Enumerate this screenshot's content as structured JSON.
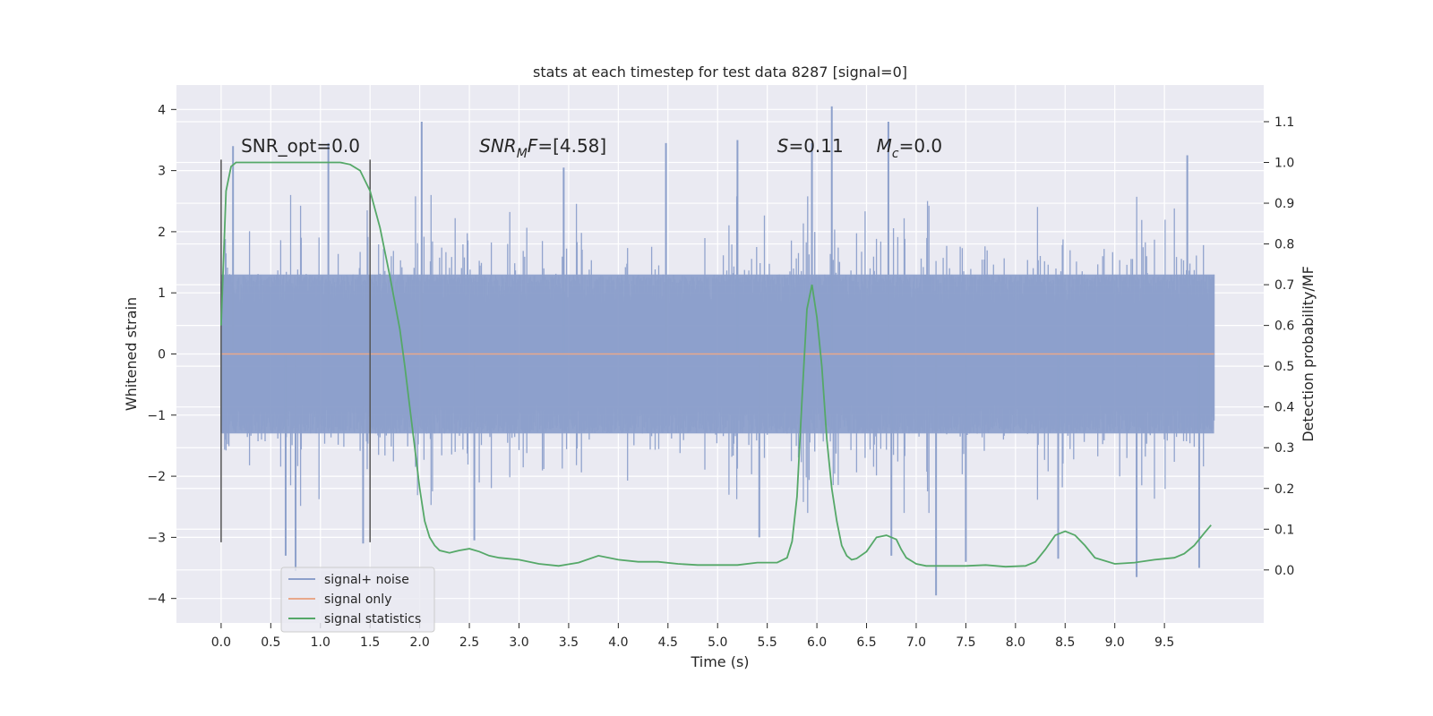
{
  "chart_data": {
    "type": "line",
    "title": "stats at each timestep for test data 8287 [signal=0]",
    "xlabel": "Time (s)",
    "ylabel": "Whitened strain",
    "y2label": "Detection probability/MF",
    "xlim": [
      -0.45,
      10.5
    ],
    "ylim": [
      -4.4,
      4.4
    ],
    "y2lim": [
      -0.13,
      1.19
    ],
    "grid": true,
    "legend_position": "lower-left",
    "x_ticks": [
      0.0,
      0.5,
      1.0,
      1.5,
      2.0,
      2.5,
      3.0,
      3.5,
      4.0,
      4.5,
      5.0,
      5.5,
      6.0,
      6.5,
      7.0,
      7.5,
      8.0,
      8.5,
      9.0,
      9.5
    ],
    "x_tick_labels": [
      "0.0",
      "0.5",
      "1.0",
      "1.5",
      "2.0",
      "2.5",
      "3.0",
      "3.5",
      "4.0",
      "4.5",
      "5.0",
      "5.5",
      "6.0",
      "6.5",
      "7.0",
      "7.5",
      "8.0",
      "8.5",
      "9.0",
      "9.5"
    ],
    "y_ticks": [
      -4,
      -3,
      -2,
      -1,
      0,
      1,
      2,
      3,
      4
    ],
    "y_tick_labels": [
      "−4",
      "−3",
      "−2",
      "−1",
      "0",
      "1",
      "2",
      "3",
      "4"
    ],
    "y2_ticks": [
      0.0,
      0.1,
      0.2,
      0.3,
      0.4,
      0.5,
      0.6,
      0.7,
      0.8,
      0.9,
      1.0,
      1.1
    ],
    "y2_tick_labels": [
      "0.0",
      "0.1",
      "0.2",
      "0.3",
      "0.4",
      "0.5",
      "0.6",
      "0.7",
      "0.8",
      "0.9",
      "1.0",
      "1.1"
    ],
    "vlines": [
      {
        "x": 0.0,
        "ymin": -3.08,
        "ymax": 3.18
      },
      {
        "x": 1.5,
        "ymin": -3.08,
        "ymax": 3.18
      }
    ],
    "annotations": [
      {
        "prefix": "SNR_opt=0.0",
        "italic": "",
        "sub": "",
        "suffix": "",
        "x": 0.2,
        "y": 3.3
      },
      {
        "prefix": "",
        "italic": "SNR",
        "sub": "M",
        "suffix": "F=[4.58]",
        "x": 2.6,
        "y": 3.3
      },
      {
        "prefix": "",
        "italic": "S",
        "sub": "",
        "suffix": "=0.11",
        "x": 5.6,
        "y": 3.3
      },
      {
        "prefix": "",
        "italic": "M",
        "sub": "c",
        "suffix": "=0.0",
        "x": 6.6,
        "y": 3.3
      }
    ],
    "series": [
      {
        "name": "signal+ noise",
        "color": "#8da0cb",
        "x_range": [
          0.0,
          10.0
        ],
        "envelope_abs": 1.3,
        "peaks": [
          {
            "x": 0.12,
            "y": 3.4
          },
          {
            "x": 0.65,
            "y": -3.3
          },
          {
            "x": 0.75,
            "y": -3.55
          },
          {
            "x": 1.08,
            "y": 3.45
          },
          {
            "x": 1.43,
            "y": -3.1
          },
          {
            "x": 2.02,
            "y": 3.8
          },
          {
            "x": 2.55,
            "y": -3.05
          },
          {
            "x": 3.45,
            "y": 3.05
          },
          {
            "x": 4.48,
            "y": 3.45
          },
          {
            "x": 5.2,
            "y": 3.5
          },
          {
            "x": 5.42,
            "y": -3.0
          },
          {
            "x": 5.95,
            "y": 3.45
          },
          {
            "x": 6.15,
            "y": 4.05
          },
          {
            "x": 6.72,
            "y": 3.8
          },
          {
            "x": 6.75,
            "y": -3.3
          },
          {
            "x": 7.2,
            "y": -3.95
          },
          {
            "x": 7.5,
            "y": -3.4
          },
          {
            "x": 8.43,
            "y": -3.35
          },
          {
            "x": 9.22,
            "y": -3.65
          },
          {
            "x": 9.73,
            "y": 3.25
          },
          {
            "x": 9.85,
            "y": -3.5
          }
        ]
      },
      {
        "name": "signal only",
        "color": "#e8a88a",
        "x": [
          0.0,
          10.0
        ],
        "y": [
          0.0,
          0.0
        ]
      },
      {
        "name": "signal statistics",
        "color": "#55a868",
        "axis": "right",
        "x": [
          0.0,
          0.05,
          0.1,
          0.15,
          0.2,
          0.3,
          0.5,
          0.8,
          1.0,
          1.2,
          1.3,
          1.4,
          1.5,
          1.6,
          1.7,
          1.8,
          1.85,
          1.9,
          1.95,
          2.0,
          2.05,
          2.1,
          2.15,
          2.2,
          2.3,
          2.4,
          2.5,
          2.6,
          2.7,
          2.8,
          3.0,
          3.2,
          3.4,
          3.6,
          3.8,
          4.0,
          4.2,
          4.4,
          4.6,
          4.8,
          5.0,
          5.2,
          5.4,
          5.5,
          5.6,
          5.7,
          5.75,
          5.8,
          5.85,
          5.9,
          5.95,
          6.0,
          6.05,
          6.1,
          6.15,
          6.2,
          6.25,
          6.3,
          6.35,
          6.4,
          6.5,
          6.6,
          6.7,
          6.8,
          6.85,
          6.9,
          7.0,
          7.1,
          7.2,
          7.3,
          7.5,
          7.7,
          7.9,
          8.1,
          8.2,
          8.3,
          8.4,
          8.5,
          8.6,
          8.7,
          8.8,
          9.0,
          9.2,
          9.4,
          9.6,
          9.7,
          9.8,
          9.9,
          9.97
        ],
        "y": [
          0.6,
          0.93,
          0.99,
          1.0,
          1.0,
          1.0,
          1.0,
          1.0,
          1.0,
          1.0,
          0.995,
          0.98,
          0.93,
          0.84,
          0.72,
          0.59,
          0.5,
          0.4,
          0.3,
          0.2,
          0.12,
          0.08,
          0.06,
          0.048,
          0.042,
          0.048,
          0.052,
          0.045,
          0.035,
          0.03,
          0.025,
          0.015,
          0.01,
          0.018,
          0.035,
          0.025,
          0.02,
          0.02,
          0.015,
          0.012,
          0.012,
          0.012,
          0.018,
          0.018,
          0.018,
          0.03,
          0.07,
          0.18,
          0.42,
          0.64,
          0.7,
          0.62,
          0.5,
          0.32,
          0.2,
          0.12,
          0.06,
          0.035,
          0.025,
          0.028,
          0.045,
          0.08,
          0.085,
          0.075,
          0.05,
          0.03,
          0.015,
          0.01,
          0.01,
          0.01,
          0.01,
          0.012,
          0.008,
          0.01,
          0.02,
          0.05,
          0.085,
          0.095,
          0.085,
          0.06,
          0.03,
          0.015,
          0.018,
          0.025,
          0.03,
          0.04,
          0.06,
          0.09,
          0.11
        ]
      }
    ]
  }
}
